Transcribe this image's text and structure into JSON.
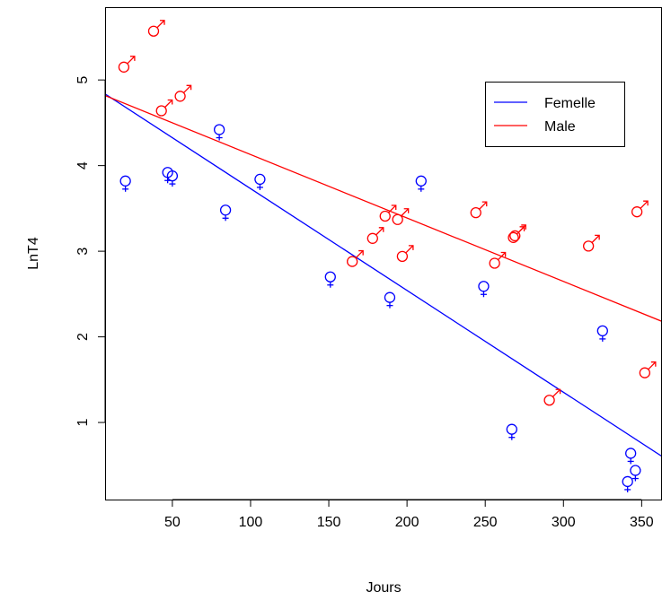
{
  "chart_data": {
    "type": "scatter",
    "title": "",
    "xlabel": "Jours",
    "ylabel": "LnT4",
    "xlim": [
      7,
      363
    ],
    "ylim": [
      0.1,
      5.85
    ],
    "xticks": [
      50,
      100,
      150,
      200,
      250,
      300,
      350
    ],
    "yticks": [
      1,
      2,
      3,
      4,
      5
    ],
    "legend": {
      "placement": "top-right",
      "entries": [
        {
          "label": "Femelle",
          "color": "#0000ff"
        },
        {
          "label": "Male",
          "color": "#ff0000"
        }
      ]
    },
    "series": [
      {
        "name": "Femelle",
        "color": "#0000ff",
        "symbol": "♀",
        "points": [
          {
            "x": 20,
            "y": 3.82
          },
          {
            "x": 47,
            "y": 3.92
          },
          {
            "x": 50,
            "y": 3.88
          },
          {
            "x": 80,
            "y": 4.42
          },
          {
            "x": 84,
            "y": 3.48
          },
          {
            "x": 106,
            "y": 3.84
          },
          {
            "x": 151,
            "y": 2.7
          },
          {
            "x": 189,
            "y": 2.46
          },
          {
            "x": 209,
            "y": 3.82
          },
          {
            "x": 249,
            "y": 2.59
          },
          {
            "x": 267,
            "y": 0.92
          },
          {
            "x": 325,
            "y": 2.07
          },
          {
            "x": 341,
            "y": 0.31
          },
          {
            "x": 343,
            "y": 0.64
          },
          {
            "x": 346,
            "y": 0.44
          }
        ],
        "fit": {
          "intercept": 4.92,
          "slope": -0.01189
        }
      },
      {
        "name": "Male",
        "color": "#ff0000",
        "symbol": "♂",
        "points": [
          {
            "x": 19,
            "y": 5.15
          },
          {
            "x": 38,
            "y": 5.57
          },
          {
            "x": 43,
            "y": 4.64
          },
          {
            "x": 55,
            "y": 4.81
          },
          {
            "x": 165,
            "y": 2.88
          },
          {
            "x": 178,
            "y": 3.15
          },
          {
            "x": 186,
            "y": 3.41
          },
          {
            "x": 194,
            "y": 3.37
          },
          {
            "x": 197,
            "y": 2.94
          },
          {
            "x": 244,
            "y": 3.45
          },
          {
            "x": 256,
            "y": 2.86
          },
          {
            "x": 268,
            "y": 3.16
          },
          {
            "x": 269,
            "y": 3.18
          },
          {
            "x": 291,
            "y": 1.26
          },
          {
            "x": 316,
            "y": 3.06
          },
          {
            "x": 347,
            "y": 3.46
          },
          {
            "x": 352,
            "y": 1.58
          }
        ],
        "fit": {
          "intercept": 4.87,
          "slope": -0.00741
        }
      }
    ]
  }
}
